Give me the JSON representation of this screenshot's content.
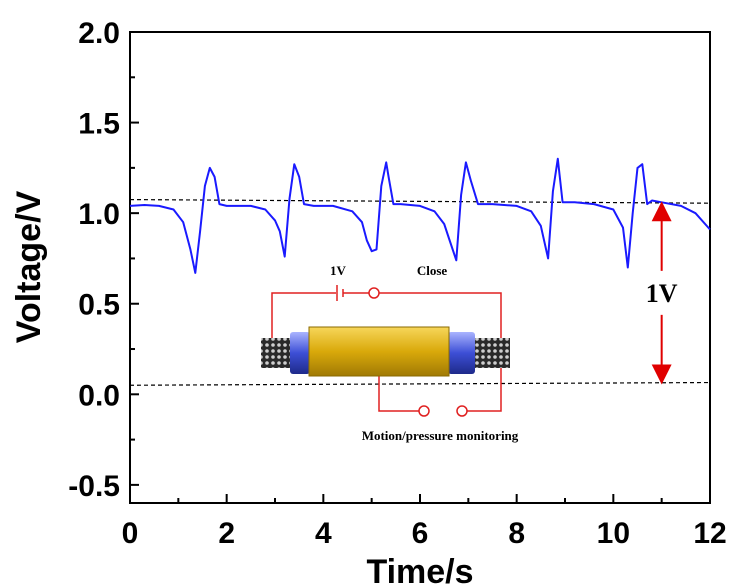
{
  "chart_data": {
    "type": "line",
    "xlabel": "Time/s",
    "ylabel": "Voltage/V",
    "xlim": [
      0,
      12
    ],
    "ylim": [
      -0.6,
      2.0
    ],
    "x_ticks": [
      0,
      2,
      4,
      6,
      8,
      10,
      12
    ],
    "x_tick_labels": [
      "0",
      "2",
      "4",
      "6",
      "8",
      "10",
      "12"
    ],
    "y_ticks": [
      -0.5,
      0.0,
      0.5,
      1.0,
      1.5,
      2.0
    ],
    "y_tick_labels": [
      "-0.5",
      "0.0",
      "0.5",
      "1.0",
      "1.5",
      "2.0"
    ],
    "grid": false,
    "series": [
      {
        "color": "#1a1aff",
        "x": [
          0,
          0.3,
          0.6,
          0.9,
          1.1,
          1.25,
          1.35,
          1.45,
          1.55,
          1.65,
          1.75,
          1.85,
          2.0,
          2.5,
          2.8,
          3.0,
          3.1,
          3.2,
          3.3,
          3.4,
          3.5,
          3.6,
          3.8,
          4.2,
          4.6,
          4.8,
          4.9,
          5.0,
          5.1,
          5.2,
          5.3,
          5.35,
          5.45,
          5.6,
          6.0,
          6.3,
          6.5,
          6.6,
          6.75,
          6.85,
          6.95,
          7.05,
          7.2,
          7.5,
          8.0,
          8.3,
          8.5,
          8.65,
          8.75,
          8.85,
          8.95,
          9.2,
          9.6,
          10.0,
          10.2,
          10.3,
          10.4,
          10.5,
          10.6,
          10.7,
          10.8,
          11.0,
          11.4,
          11.7,
          12.0
        ],
        "y": [
          1.04,
          1.045,
          1.04,
          1.02,
          0.95,
          0.8,
          0.67,
          0.9,
          1.15,
          1.25,
          1.2,
          1.05,
          1.04,
          1.04,
          1.02,
          0.96,
          0.9,
          0.76,
          1.08,
          1.27,
          1.2,
          1.05,
          1.04,
          1.04,
          1.01,
          0.95,
          0.85,
          0.79,
          0.8,
          1.15,
          1.28,
          1.2,
          1.05,
          1.05,
          1.04,
          1.01,
          0.94,
          0.86,
          0.74,
          1.1,
          1.28,
          1.18,
          1.05,
          1.05,
          1.04,
          1.01,
          0.93,
          0.75,
          1.12,
          1.3,
          1.06,
          1.06,
          1.05,
          1.02,
          0.92,
          0.7,
          1.0,
          1.25,
          1.27,
          1.05,
          1.07,
          1.06,
          1.04,
          1.0,
          0.91
        ]
      }
    ],
    "annotations": {
      "upper_dashed_y": 1.06,
      "lower_dashed_y": 0.06,
      "arrow_x": 11.0,
      "arrow_label": "1V"
    }
  },
  "inset": {
    "battery_label": "1V",
    "switch_label": "Close",
    "bottom_label": "Motion/pressure monitoring",
    "circuit_color": "#e02020",
    "sleeve_color": "#e8b90a"
  }
}
